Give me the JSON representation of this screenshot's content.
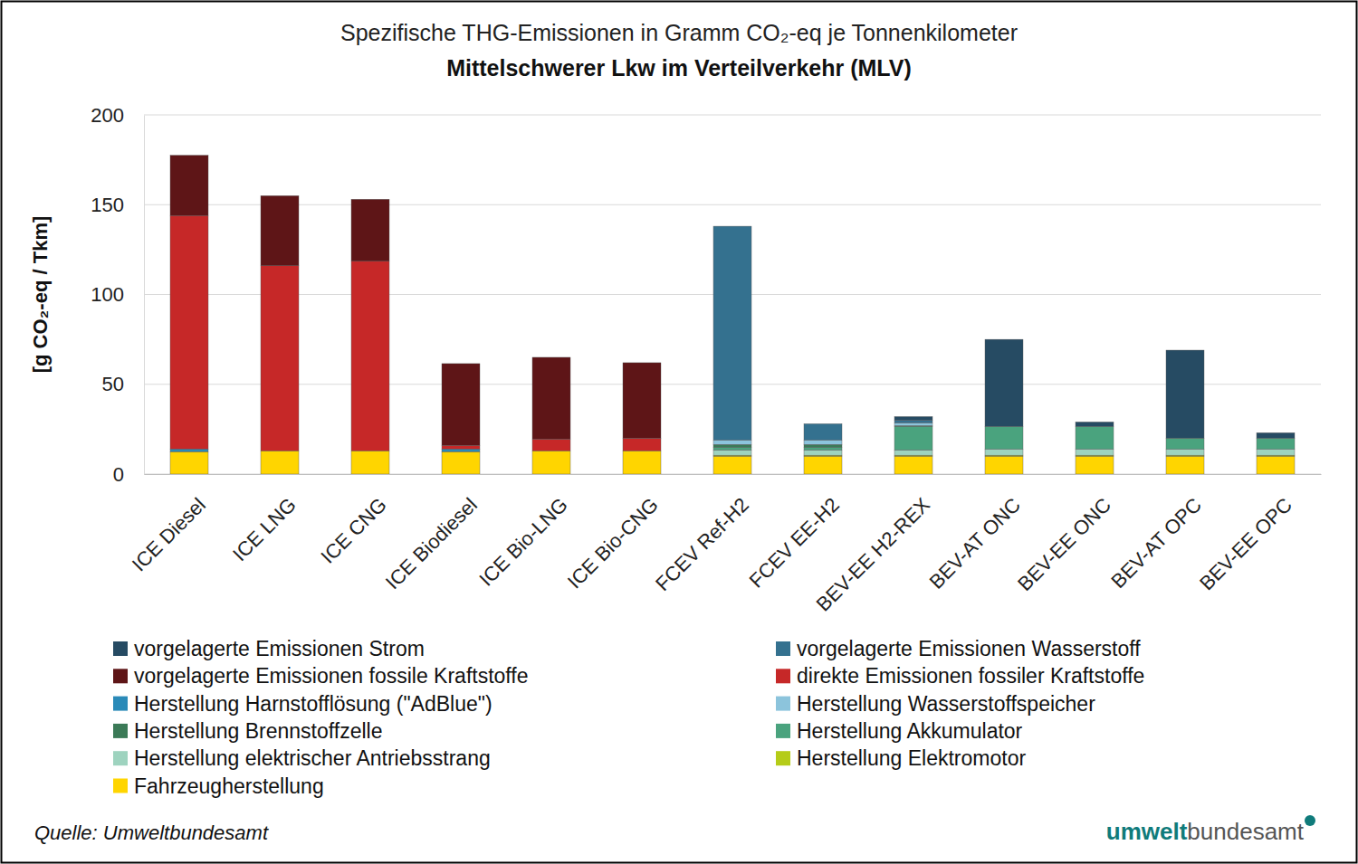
{
  "chart_data": {
    "type": "bar",
    "stacked": true,
    "grid": true,
    "title": "Spezifische THG-Emissionen in Gramm CO₂-eq je Tonnenkilometer",
    "subtitle": "Mittelschwerer Lkw im Verteilverkehr (MLV)",
    "y_label": "[g CO₂-eq / Tkm]",
    "source": "Quelle: Umweltbundesamt",
    "logo": [
      "umwelt",
      "bundesamt"
    ],
    "categories": [
      "ICE Diesel",
      "ICE LNG",
      "ICE CNG",
      "ICE Biodiesel",
      "ICE Bio-LNG",
      "ICE Bio-CNG",
      "FCEV Ref-H2",
      "FCEV EE-H2",
      "BEV-EE H2-REX",
      "BEV-AT ONC",
      "BEV-EE ONC",
      "BEV-AT OPC",
      "BEV-EE OPC"
    ],
    "ylim": [
      0,
      200
    ],
    "yticks": [
      0,
      50,
      100,
      150,
      200
    ],
    "series": [
      {
        "name": "vorgelagerte Emissionen Strom",
        "color": "#264b63",
        "values": [
          0,
          0,
          0,
          0,
          0,
          0,
          0,
          0,
          2,
          48.5,
          2.5,
          49,
          3
        ]
      },
      {
        "name": "vorgelagerte Emissionen Wasserstoff",
        "color": "#34718f",
        "values": [
          0,
          0,
          0,
          0,
          0,
          0,
          119,
          9,
          1.5,
          0,
          0,
          0,
          0
        ]
      },
      {
        "name": "vorgelagerte Emissionen fossile Kraftstoffe",
        "color": "#5e1517",
        "values": [
          33.5,
          39,
          34.5,
          45.5,
          45.5,
          42,
          0,
          0,
          0,
          0,
          0,
          0,
          0
        ]
      },
      {
        "name": "direkte Emissionen fossiler Kraftstoffe",
        "color": "#c62828",
        "values": [
          130,
          103,
          105.5,
          2,
          6.5,
          7,
          0,
          0,
          0,
          0,
          0,
          0,
          0
        ]
      },
      {
        "name": "Herstellung Harnstofflösung (\"AdBlue\")",
        "color": "#2a8ab8",
        "values": [
          1.5,
          0,
          0,
          1.5,
          0,
          0,
          0,
          0,
          0,
          0,
          0,
          0,
          0
        ]
      },
      {
        "name": "Herstellung Wasserstoffspeicher",
        "color": "#8cc4dc",
        "values": [
          0,
          0,
          0,
          0,
          0,
          0,
          2.5,
          2.5,
          1.5,
          0,
          0,
          0,
          0
        ]
      },
      {
        "name": "Herstellung Brennstoffzelle",
        "color": "#3b7a57",
        "values": [
          0,
          0,
          0,
          0,
          0,
          0,
          1.5,
          1.5,
          0.5,
          0,
          0,
          0,
          0
        ]
      },
      {
        "name": "Herstellung Akkumulator",
        "color": "#4aa37e",
        "values": [
          0,
          0,
          0,
          0,
          0,
          0,
          1.5,
          1.5,
          13,
          12.5,
          12.5,
          6,
          6
        ]
      },
      {
        "name": "Herstellung elektrischer Antriebsstrang",
        "color": "#9ed3bf",
        "values": [
          0,
          0,
          0,
          0,
          0,
          0,
          3,
          3,
          3,
          3.5,
          3.5,
          3.5,
          3.5
        ]
      },
      {
        "name": "Herstellung Elektromotor",
        "color": "#b5cc18",
        "values": [
          0,
          0,
          0,
          0,
          0,
          0,
          0.5,
          0.5,
          0.5,
          0.5,
          0.5,
          0.5,
          0.5
        ]
      },
      {
        "name": "Fahrzeugherstellung",
        "color": "#ffd500",
        "values": [
          12.5,
          13,
          13,
          12.5,
          13,
          13,
          10,
          10,
          10,
          10,
          10,
          10,
          10
        ]
      }
    ]
  }
}
